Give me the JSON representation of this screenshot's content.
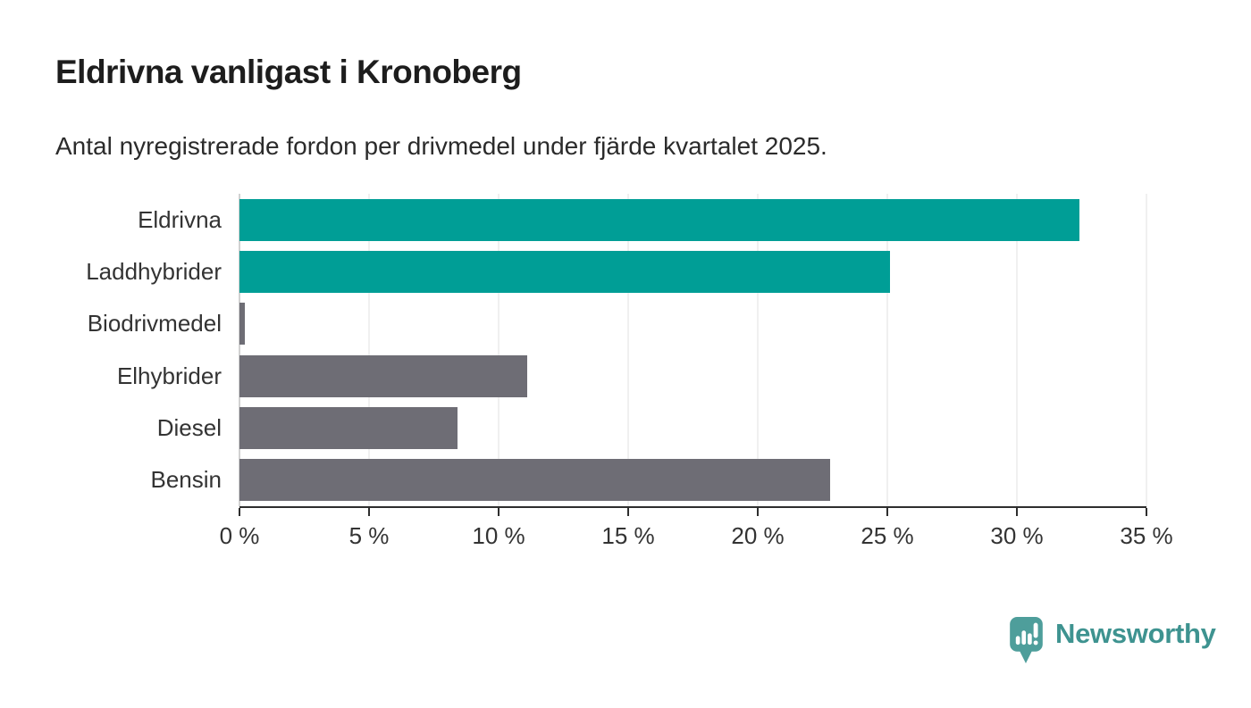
{
  "header": {
    "title": "Eldrivna vanligast i Kronoberg",
    "subtitle": "Antal nyregistrerade fordon per drivmedel under fjärde kvartalet 2025."
  },
  "chart_data": {
    "type": "bar",
    "orientation": "horizontal",
    "categories": [
      "Eldrivna",
      "Laddhybrider",
      "Biodrivmedel",
      "Elhybrider",
      "Diesel",
      "Bensin"
    ],
    "values": [
      32.4,
      25.1,
      0.2,
      11.1,
      8.4,
      22.8
    ],
    "bar_colors": [
      "#009e96",
      "#009e96",
      "#6e6d75",
      "#6e6d75",
      "#6e6d75",
      "#6e6d75"
    ],
    "title": "Eldrivna vanligast i Kronoberg",
    "subtitle": "Antal nyregistrerade fordon per drivmedel under fjärde kvartalet 2025.",
    "xlabel": "",
    "ylabel": "",
    "xlim": [
      0,
      35
    ],
    "x_ticks": [
      0,
      5,
      10,
      15,
      20,
      25,
      30,
      35
    ],
    "x_tick_suffix": " %",
    "grid": true,
    "legend": false
  },
  "colors": {
    "bar_teal": "#009e96",
    "bar_gray": "#6e6d75",
    "grid_line": "#e2e2e2",
    "zero_line": "#a6a6a6",
    "axis_line": "#2e2e2e",
    "tick_mark": "#2e2e2e",
    "title_text": "#1d1d1d",
    "subtitle_text": "#2b2b2b",
    "label_text": "#333333",
    "logo_mark": "#4e9e9b",
    "brand_text": "#3e9390"
  },
  "footer": {
    "brand": "Newsworthy"
  }
}
